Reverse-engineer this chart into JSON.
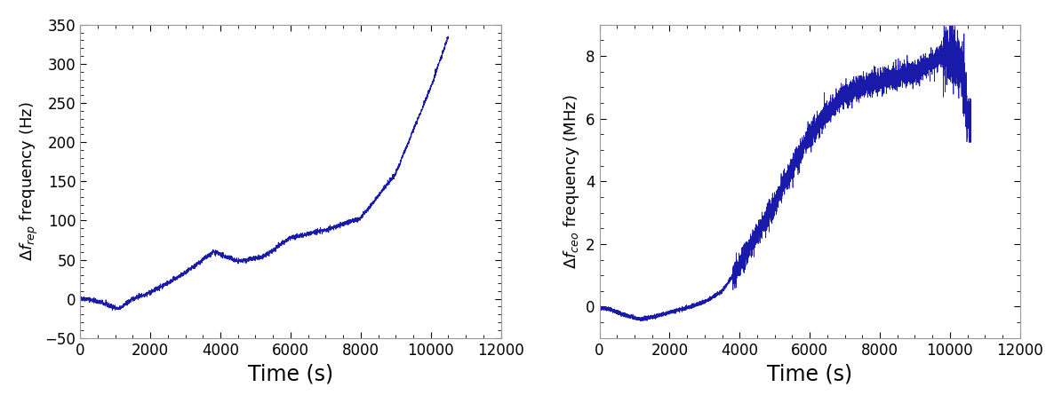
{
  "line_color": "#1a1aaa",
  "background_color": "#ffffff",
  "left_ylabel": "$\\Delta f_{rep}$ frequency (Hz)",
  "right_ylabel": "$\\Delta f_{ceo}$ frequency (MHz)",
  "xlabel": "Time (s)",
  "left_xlim": [
    0,
    12000
  ],
  "left_ylim": [
    -50,
    350
  ],
  "right_xlim": [
    0,
    12000
  ],
  "right_ylim": [
    -1,
    9
  ],
  "left_xticks": [
    0,
    2000,
    4000,
    6000,
    8000,
    10000,
    12000
  ],
  "right_xticks": [
    0,
    2000,
    4000,
    6000,
    8000,
    10000,
    12000
  ],
  "left_yticks": [
    -50,
    0,
    50,
    100,
    150,
    200,
    250,
    300,
    350
  ],
  "right_yticks": [
    0,
    2,
    4,
    6,
    8
  ],
  "xlabel_fontsize": 17,
  "ylabel_fontsize": 13,
  "tick_fontsize": 12,
  "spine_color": "#999999",
  "spine_linewidth": 0.8
}
